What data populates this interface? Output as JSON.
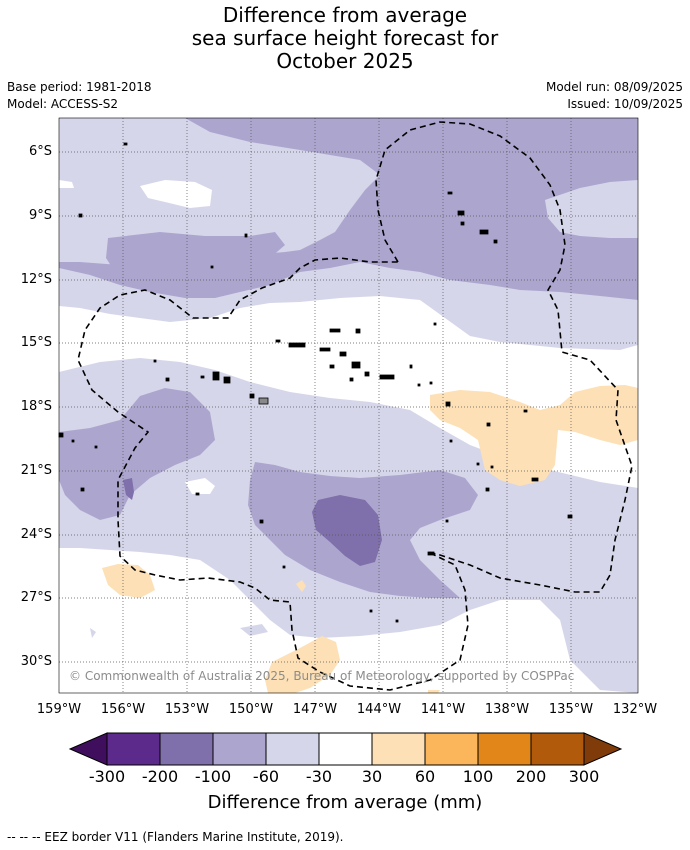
{
  "title_lines": [
    "Difference from average",
    "sea surface height forecast for",
    "October 2025"
  ],
  "meta": {
    "base_period": "Base period: 1981-2018",
    "model": "Model: ACCESS-S2",
    "model_run": "Model run: 08/09/2025",
    "issued": "Issued: 10/09/2025"
  },
  "map": {
    "lat_labels": [
      "6°S",
      "9°S",
      "12°S",
      "15°S",
      "18°S",
      "21°S",
      "24°S",
      "27°S",
      "30°S"
    ],
    "lon_labels": [
      "159°W",
      "156°W",
      "153°W",
      "150°W",
      "147°W",
      "144°W",
      "141°W",
      "138°W",
      "135°W",
      "132°W"
    ],
    "copyright": "© Commonwealth of Australia 2025, Bureau of Meteorology, supported by COSPPac"
  },
  "colorbar": {
    "title": "Difference from average (mm)",
    "ticks": [
      "-300",
      "-200",
      "-100",
      "-60",
      "-30",
      "30",
      "60",
      "100",
      "200",
      "300"
    ],
    "colors": [
      "#3f0f5e",
      "#5b2a8a",
      "#7f6faa",
      "#aca6cf",
      "#d6d6ea",
      "#ffffff",
      "#fde0b5",
      "#fbb65b",
      "#e2861a",
      "#b25a0b",
      "#7f3c0a"
    ]
  },
  "footnote": "-- -- -- EEZ border V11 (Flanders Marine Institute, 2019)."
}
